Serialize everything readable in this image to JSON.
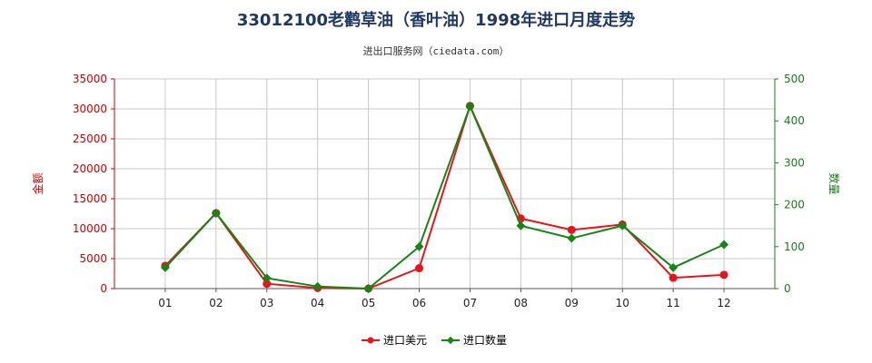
{
  "header": {
    "title": "33012100老鹳草油（香叶油）1998年进口月度走势",
    "source": "进出口服务网（ciedata.com）"
  },
  "colors": {
    "left_axis": "#cc0000",
    "right_axis": "#1a7a1a",
    "series_usd": "#e8141b",
    "series_qty": "#158515",
    "grid": "#c8c8c8"
  },
  "chart_data": {
    "type": "line",
    "categories": [
      "01",
      "02",
      "03",
      "04",
      "05",
      "06",
      "07",
      "08",
      "09",
      "10",
      "11",
      "12"
    ],
    "y_left": {
      "label": "金额",
      "ylim": [
        0,
        35000
      ],
      "ticks": [
        0,
        5000,
        10000,
        15000,
        20000,
        25000,
        30000,
        35000
      ]
    },
    "y_right": {
      "label": "数量",
      "ylim": [
        0,
        500
      ],
      "ticks": [
        0,
        100,
        200,
        300,
        400,
        500
      ]
    },
    "grid": true,
    "legend_position": "bottom-center",
    "series": [
      {
        "name": "进口美元",
        "axis": "left",
        "values": [
          3800,
          12600,
          800,
          100,
          0,
          3400,
          30500,
          11700,
          9800,
          10700,
          1800,
          2300
        ]
      },
      {
        "name": "进口数量",
        "axis": "right",
        "values": [
          50,
          180,
          25,
          5,
          0,
          100,
          435,
          150,
          120,
          150,
          50,
          105
        ]
      }
    ]
  }
}
